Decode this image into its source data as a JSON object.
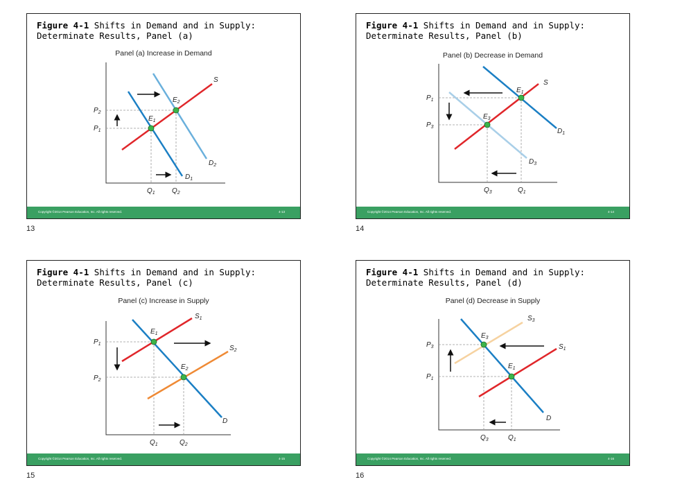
{
  "slides": [
    {
      "title_bold": "Figure 4-1",
      "title_rest": " Shifts in Demand and in Supply:",
      "title_line2": "Determinate Results, Panel (a)",
      "panel_caption": "Panel (a) Increase in Demand",
      "copyright": "Copyright ©2014 Pearson Education, Inc. All rights reserved.",
      "page_ref": "4-13",
      "slide_number": "13",
      "labels": {
        "S": "S",
        "D2": "D",
        "D2_sub": "2",
        "D1": "D",
        "D1_sub": "1",
        "E2": "E",
        "E2_sub": "2",
        "E1": "E",
        "E1_sub": "1",
        "P2": "P",
        "P2_sub": "2",
        "P1": "P",
        "P1_sub": "1",
        "Q1": "Q",
        "Q1_sub": "1",
        "Q2": "Q",
        "Q2_sub": "2"
      }
    },
    {
      "title_bold": "Figure 4-1",
      "title_rest": " Shifts in Demand and in Supply:",
      "title_line2": "Determinate Results, Panel (b)",
      "panel_caption": "Panel (b) Decrease in Demand",
      "copyright": "Copyright ©2014 Pearson Education, Inc. All rights reserved.",
      "page_ref": "4-14",
      "slide_number": "14",
      "labels": {
        "S": "S",
        "D1": "D",
        "D1_sub": "1",
        "D3": "D",
        "D3_sub": "3",
        "E1": "E",
        "E1_sub": "1",
        "E3": "E",
        "E3_sub": "3",
        "P1": "P",
        "P1_sub": "1",
        "P3": "P",
        "P3_sub": "3",
        "Q3": "Q",
        "Q3_sub": "3",
        "Q1": "Q",
        "Q1_sub": "1"
      }
    },
    {
      "title_bold": "Figure 4-1",
      "title_rest": " Shifts in Demand and in Supply:",
      "title_line2": "Determinate Results, Panel (c)",
      "panel_caption": "Panel (c) Increase in Supply",
      "copyright": "Copyright ©2014 Pearson Education, Inc. All rights reserved.",
      "page_ref": "4-15",
      "slide_number": "15",
      "labels": {
        "S1": "S",
        "S1_sub": "1",
        "S2": "S",
        "S2_sub": "2",
        "D": "D",
        "E1": "E",
        "E1_sub": "1",
        "E2": "E",
        "E2_sub": "2",
        "P1": "P",
        "P1_sub": "1",
        "P2": "P",
        "P2_sub": "2",
        "Q1": "Q",
        "Q1_sub": "1",
        "Q2": "Q",
        "Q2_sub": "2"
      }
    },
    {
      "title_bold": "Figure 4-1",
      "title_rest": " Shifts in Demand and in Supply:",
      "title_line2": "Determinate Results, Panel (d)",
      "panel_caption": "Panel (d) Decrease in Supply",
      "copyright": "Copyright ©2014 Pearson Education, Inc. All rights reserved.",
      "page_ref": "4-16",
      "slide_number": "16",
      "labels": {
        "S3": "S",
        "S3_sub": "3",
        "S1": "S",
        "S1_sub": "1",
        "D": "D",
        "E3": "E",
        "E3_sub": "3",
        "E1": "E",
        "E1_sub": "1",
        "P3": "P",
        "P3_sub": "3",
        "P1": "P",
        "P1_sub": "1",
        "Q3": "Q",
        "Q3_sub": "3",
        "Q1": "Q",
        "Q1_sub": "1"
      }
    }
  ],
  "colors": {
    "supply_red": "#e0262a",
    "demand_blue": "#1b7fc4",
    "demand_light_blue": "#6ab0dc",
    "demand_pale_blue": "#a9cfe8",
    "supply_orange": "#ef8a35",
    "supply_pale_orange": "#f6d2a0",
    "equilibrium_green": "#3cb44a",
    "footer_green": "#3aa062"
  }
}
